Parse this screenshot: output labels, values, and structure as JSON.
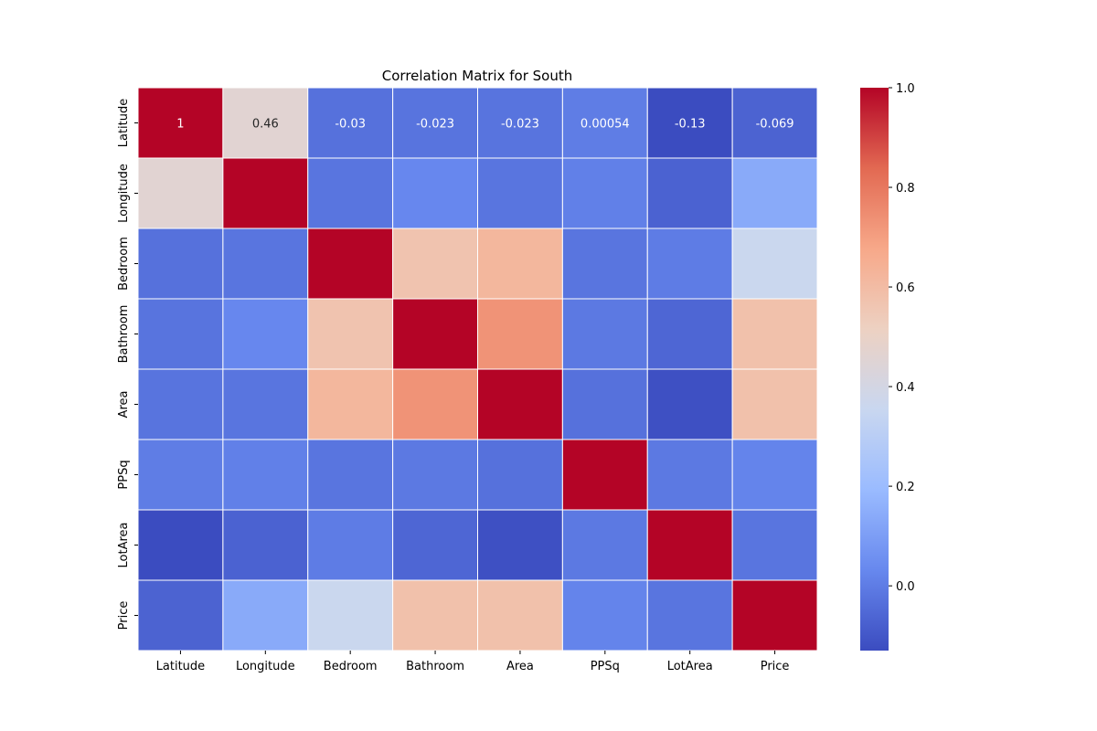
{
  "chart_data": {
    "type": "heatmap",
    "title": "Correlation Matrix for South",
    "rows": [
      "Latitude",
      "Longitude",
      "Bedroom",
      "Bathroom",
      "Area",
      "PPSq",
      "LotArea",
      "Price"
    ],
    "columns": [
      "Latitude",
      "Longitude",
      "Bedroom",
      "Bathroom",
      "Area",
      "PPSq",
      "LotArea",
      "Price"
    ],
    "values": [
      [
        1,
        0.46,
        -0.03,
        -0.023,
        -0.023,
        0.00054,
        -0.13,
        -0.069
      ],
      [
        0.46,
        1,
        -0.02,
        0.03,
        -0.02,
        0.01,
        -0.07,
        0.14
      ],
      [
        -0.03,
        -0.02,
        1,
        0.57,
        0.62,
        -0.02,
        0.0,
        0.36
      ],
      [
        -0.023,
        0.03,
        0.57,
        1,
        0.73,
        -0.01,
        -0.06,
        0.58
      ],
      [
        -0.023,
        -0.02,
        0.62,
        0.73,
        1,
        -0.03,
        -0.12,
        0.58
      ],
      [
        0.00054,
        0.01,
        -0.02,
        -0.01,
        -0.03,
        1,
        -0.01,
        0.02
      ],
      [
        -0.13,
        -0.07,
        0.0,
        -0.06,
        -0.12,
        -0.01,
        1,
        -0.02
      ],
      [
        -0.069,
        0.14,
        0.36,
        0.58,
        0.58,
        0.02,
        -0.02,
        1
      ]
    ],
    "annotations": [
      {
        "row": 0,
        "col": 0,
        "text": "1"
      },
      {
        "row": 0,
        "col": 1,
        "text": "0.46"
      },
      {
        "row": 0,
        "col": 2,
        "text": "-0.03"
      },
      {
        "row": 0,
        "col": 3,
        "text": "-0.023"
      },
      {
        "row": 0,
        "col": 4,
        "text": "-0.023"
      },
      {
        "row": 0,
        "col": 5,
        "text": "0.00054"
      },
      {
        "row": 0,
        "col": 6,
        "text": "-0.13"
      },
      {
        "row": 0,
        "col": 7,
        "text": "-0.069"
      }
    ],
    "colorbar": {
      "min": -0.13,
      "max": 1.0,
      "ticks": [
        "0.0",
        "0.2",
        "0.4",
        "0.6",
        "0.8",
        "1.0"
      ],
      "tick_values": [
        0.0,
        0.2,
        0.4,
        0.6,
        0.8,
        1.0
      ]
    },
    "colormap": "coolwarm",
    "colormap_stops": [
      "#3b4cc0",
      "#6788ee",
      "#9abbff",
      "#c9d7f0",
      "#edd1c2",
      "#f7a889",
      "#e26952",
      "#b40426"
    ]
  }
}
